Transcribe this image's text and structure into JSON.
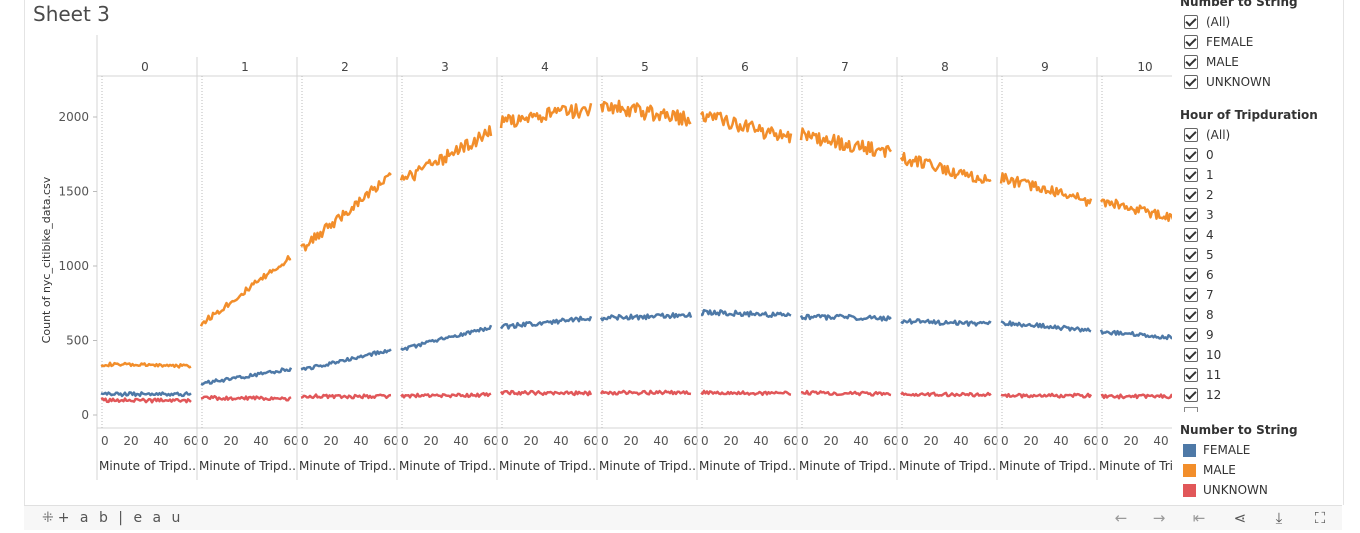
{
  "sheet_title": "Sheet 3",
  "filter_gender": {
    "title": "Number to String",
    "items": [
      "(All)",
      "FEMALE",
      "MALE",
      "UNKNOWN"
    ]
  },
  "filter_hour": {
    "title": "Hour of Tripduration",
    "items": [
      "(All)",
      "0",
      "1",
      "2",
      "3",
      "4",
      "5",
      "6",
      "7",
      "8",
      "9",
      "10",
      "11",
      "12"
    ]
  },
  "color_legend": {
    "title": "Number to String",
    "items": [
      {
        "label": "FEMALE",
        "color": "#4e79a7"
      },
      {
        "label": "MALE",
        "color": "#f28e2b"
      },
      {
        "label": "UNKNOWN",
        "color": "#e15759"
      }
    ]
  },
  "footer": {
    "brand": "+ a b | e a u",
    "icons": [
      "undo-icon",
      "redo-icon",
      "revert-icon",
      "share-icon",
      "download-icon",
      "fullscreen-icon"
    ]
  },
  "chart_data": {
    "type": "line",
    "ylabel": "Count of nyc_citibike_data.csv",
    "xlabel": "Minute of Tripd..",
    "ylim": [
      0,
      2200
    ],
    "yticks": [
      0,
      500,
      1000,
      1500,
      2000
    ],
    "xticks": [
      0,
      20,
      40,
      60
    ],
    "panels": [
      "0",
      "1",
      "2",
      "3",
      "4",
      "5",
      "6",
      "7",
      "8",
      "9",
      "10"
    ],
    "series": [
      {
        "name": "MALE",
        "color": "#f28e2b",
        "start": [
          340,
          610,
          1110,
          1570,
          1960,
          2080,
          2020,
          1880,
          1730,
          1590,
          1440
        ],
        "end": [
          330,
          1060,
          1610,
          1900,
          2060,
          1980,
          1850,
          1760,
          1560,
          1430,
          1290
        ]
      },
      {
        "name": "FEMALE",
        "color": "#4e79a7",
        "start": [
          140,
          210,
          300,
          440,
          590,
          650,
          690,
          660,
          630,
          620,
          560
        ],
        "end": [
          140,
          310,
          440,
          590,
          650,
          670,
          670,
          650,
          610,
          570,
          510
        ]
      },
      {
        "name": "UNKNOWN",
        "color": "#e15759",
        "start": [
          100,
          115,
          125,
          130,
          150,
          150,
          150,
          150,
          140,
          130,
          125
        ],
        "end": [
          95,
          110,
          125,
          135,
          145,
          150,
          145,
          140,
          135,
          130,
          125
        ]
      }
    ]
  }
}
